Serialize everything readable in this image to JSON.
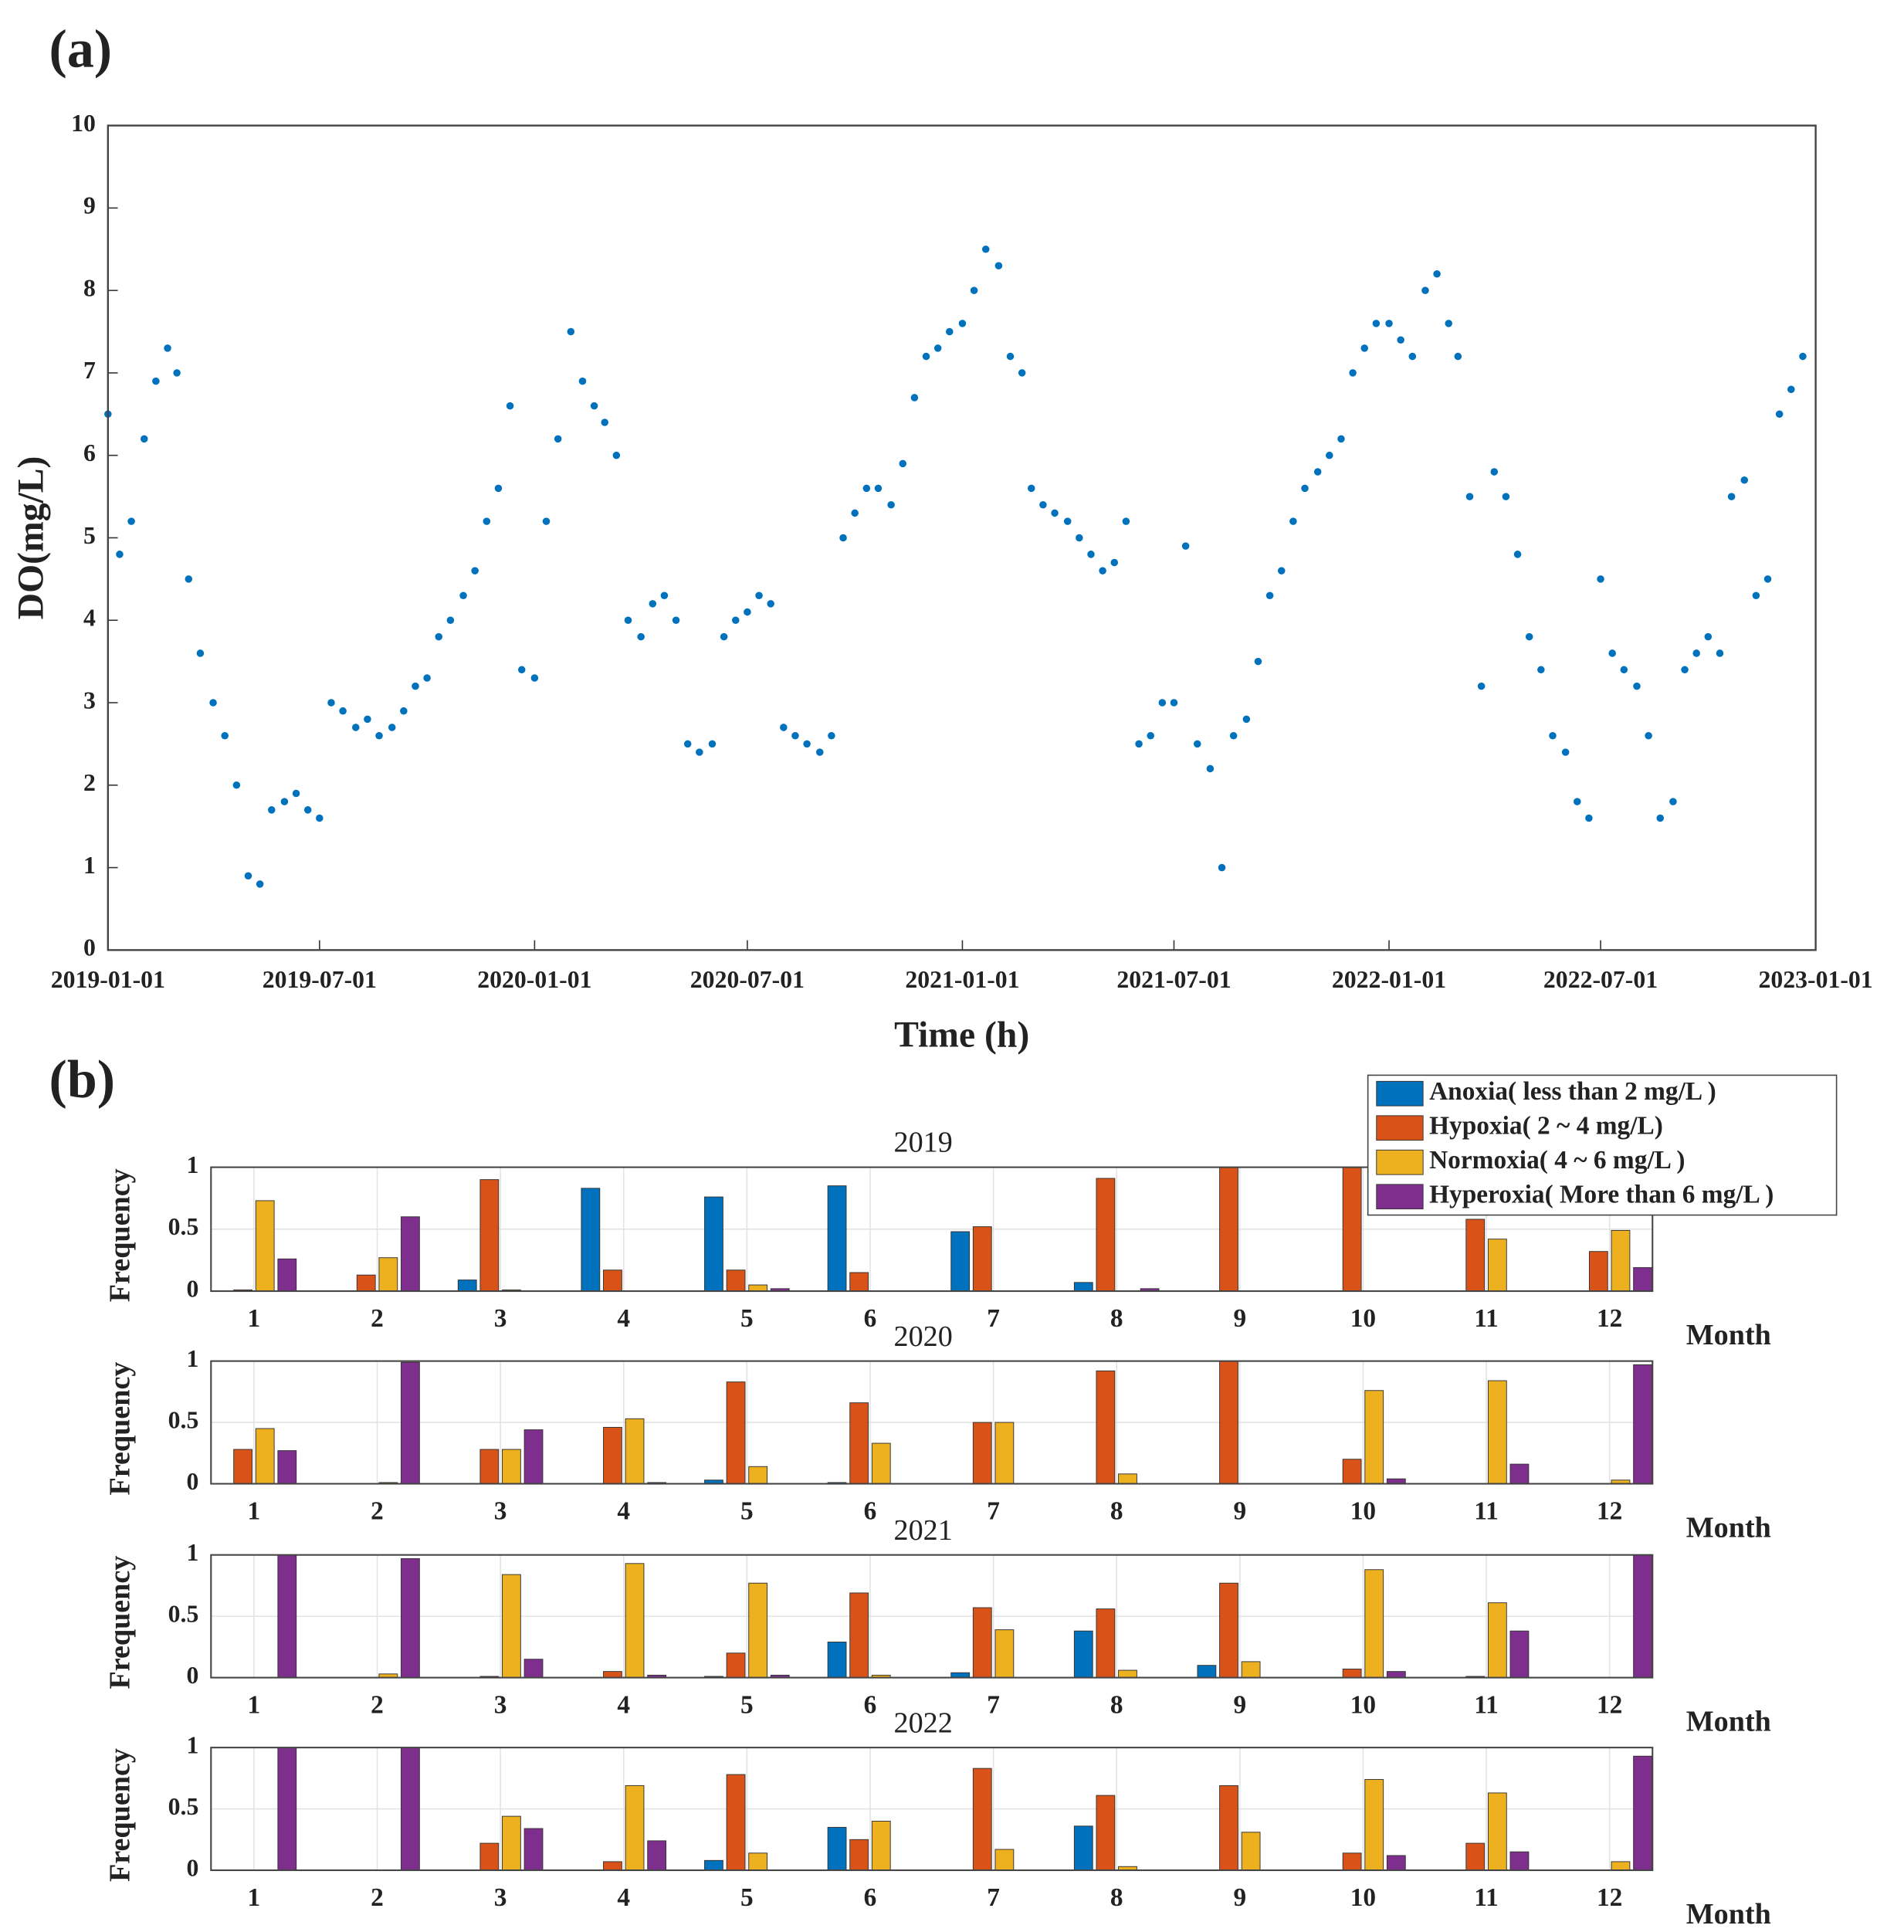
{
  "chart_data": [
    {
      "type": "scatter",
      "panel_label": "(a)",
      "xlabel": "Time (h)",
      "ylabel": "DO(mg/L)",
      "color": "#0072BD",
      "grid": false,
      "xlim": [
        "2019-01-01",
        "2023-01-01"
      ],
      "xticks": [
        "2019-01-01",
        "2019-07-01",
        "2020-01-01",
        "2020-07-01",
        "2021-01-01",
        "2021-07-01",
        "2022-01-01",
        "2022-07-01",
        "2023-01-01"
      ],
      "ylim": [
        0,
        10
      ],
      "yticks": [
        0,
        1,
        2,
        3,
        4,
        5,
        6,
        7,
        8,
        9,
        10
      ],
      "x": [
        "2019-01-01",
        "2019-01-11",
        "2019-01-21",
        "2019-02-01",
        "2019-02-11",
        "2019-02-21",
        "2019-03-01",
        "2019-03-11",
        "2019-03-21",
        "2019-04-01",
        "2019-04-11",
        "2019-04-21",
        "2019-05-01",
        "2019-05-11",
        "2019-05-21",
        "2019-06-01",
        "2019-06-11",
        "2019-06-21",
        "2019-07-01",
        "2019-07-11",
        "2019-07-21",
        "2019-08-01",
        "2019-08-11",
        "2019-08-21",
        "2019-09-01",
        "2019-09-11",
        "2019-09-21",
        "2019-10-01",
        "2019-10-11",
        "2019-10-21",
        "2019-11-01",
        "2019-11-11",
        "2019-11-21",
        "2019-12-01",
        "2019-12-11",
        "2019-12-21",
        "2020-01-01",
        "2020-01-11",
        "2020-01-21",
        "2020-02-01",
        "2020-02-11",
        "2020-02-21",
        "2020-03-01",
        "2020-03-11",
        "2020-03-21",
        "2020-04-01",
        "2020-04-11",
        "2020-04-21",
        "2020-05-01",
        "2020-05-11",
        "2020-05-21",
        "2020-06-01",
        "2020-06-11",
        "2020-06-21",
        "2020-07-01",
        "2020-07-11",
        "2020-07-21",
        "2020-08-01",
        "2020-08-11",
        "2020-08-21",
        "2020-09-01",
        "2020-09-11",
        "2020-09-21",
        "2020-10-01",
        "2020-10-11",
        "2020-10-21",
        "2020-11-01",
        "2020-11-11",
        "2020-11-21",
        "2020-12-01",
        "2020-12-11",
        "2020-12-21",
        "2021-01-01",
        "2021-01-11",
        "2021-01-21",
        "2021-02-01",
        "2021-02-11",
        "2021-02-21",
        "2021-03-01",
        "2021-03-11",
        "2021-03-21",
        "2021-04-01",
        "2021-04-11",
        "2021-04-21",
        "2021-05-01",
        "2021-05-11",
        "2021-05-21",
        "2021-06-01",
        "2021-06-11",
        "2021-06-21",
        "2021-07-01",
        "2021-07-11",
        "2021-07-21",
        "2021-08-01",
        "2021-08-11",
        "2021-08-21",
        "2021-09-01",
        "2021-09-11",
        "2021-09-21",
        "2021-10-01",
        "2021-10-11",
        "2021-10-21",
        "2021-11-01",
        "2021-11-11",
        "2021-11-21",
        "2021-12-01",
        "2021-12-11",
        "2021-12-21",
        "2022-01-01",
        "2022-01-11",
        "2022-01-21",
        "2022-02-01",
        "2022-02-11",
        "2022-02-21",
        "2022-03-01",
        "2022-03-11",
        "2022-03-21",
        "2022-04-01",
        "2022-04-11",
        "2022-04-21",
        "2022-05-01",
        "2022-05-11",
        "2022-05-21",
        "2022-06-01",
        "2022-06-11",
        "2022-06-21",
        "2022-07-01",
        "2022-07-11",
        "2022-07-21",
        "2022-08-01",
        "2022-08-11",
        "2022-08-21",
        "2022-09-01",
        "2022-09-11",
        "2022-09-21",
        "2022-10-01",
        "2022-10-11",
        "2022-10-21",
        "2022-11-01",
        "2022-11-11",
        "2022-11-21",
        "2022-12-01",
        "2022-12-11",
        "2022-12-21"
      ],
      "values": [
        6.5,
        4.8,
        5.2,
        6.2,
        6.9,
        7.3,
        7.0,
        4.5,
        3.6,
        3.0,
        2.6,
        2.0,
        0.9,
        0.8,
        1.7,
        1.8,
        1.9,
        1.7,
        1.6,
        3.0,
        2.9,
        2.7,
        2.8,
        2.6,
        2.7,
        2.9,
        3.2,
        3.3,
        3.8,
        4.0,
        4.3,
        4.6,
        5.2,
        5.6,
        6.6,
        3.4,
        3.3,
        5.2,
        6.2,
        7.5,
        6.9,
        6.6,
        6.4,
        6.0,
        4.0,
        3.8,
        4.2,
        4.3,
        4.0,
        2.5,
        2.4,
        2.5,
        3.8,
        4.0,
        4.1,
        4.3,
        4.2,
        2.7,
        2.6,
        2.5,
        2.4,
        2.6,
        5.0,
        5.3,
        5.6,
        5.6,
        5.4,
        5.9,
        6.7,
        7.2,
        7.3,
        7.5,
        7.6,
        8.0,
        8.5,
        8.3,
        7.2,
        7.0,
        5.6,
        5.4,
        5.3,
        5.2,
        5.0,
        4.8,
        4.6,
        4.7,
        5.2,
        2.5,
        2.6,
        3.0,
        3.0,
        4.9,
        2.5,
        2.2,
        1.0,
        2.6,
        2.8,
        3.5,
        4.3,
        4.6,
        5.2,
        5.6,
        5.8,
        6.0,
        6.2,
        7.0,
        7.3,
        7.6,
        7.6,
        7.4,
        7.2,
        8.0,
        8.2,
        7.6,
        7.2,
        5.5,
        3.2,
        5.8,
        5.5,
        4.8,
        3.8,
        3.4,
        2.6,
        2.4,
        1.8,
        1.6,
        4.5,
        3.6,
        3.4,
        3.2,
        2.6,
        1.6,
        1.8,
        3.4,
        3.6,
        3.8,
        3.6,
        5.5,
        5.7,
        4.3,
        4.5,
        6.5,
        6.8,
        7.2
      ]
    },
    {
      "type": "bar",
      "panel_label": "(b)",
      "title": "2019",
      "xlabel": "Month",
      "ylabel": "Frequency",
      "grid": true,
      "legend": "upper right",
      "categories": [
        "1",
        "2",
        "3",
        "4",
        "5",
        "6",
        "7",
        "8",
        "9",
        "10",
        "11",
        "12"
      ],
      "ylim": [
        0,
        1
      ],
      "yticks": [
        0,
        0.5,
        1
      ],
      "series": [
        {
          "name": "Anoxia( less than 2 mg/L )",
          "color": "#0072BD",
          "values": [
            0,
            0,
            0.09,
            0.83,
            0.76,
            0.85,
            0.48,
            0.07,
            0,
            0,
            0,
            0
          ]
        },
        {
          "name": "Hypoxia( 2 ~ 4 mg/L)",
          "color": "#D95319",
          "values": [
            0.01,
            0.13,
            0.9,
            0.17,
            0.17,
            0.15,
            0.52,
            0.91,
            1,
            1,
            0.58,
            0.32
          ]
        },
        {
          "name": "Normoxia( 4 ~ 6 mg/L )",
          "color": "#EDB120",
          "values": [
            0.73,
            0.27,
            0.01,
            0,
            0.05,
            0,
            0,
            0,
            0,
            0,
            0.42,
            0.49
          ]
        },
        {
          "name": "Hyperoxia( More than 6 mg/L )",
          "color": "#7E2F8E",
          "values": [
            0.26,
            0.6,
            0,
            0,
            0.02,
            0,
            0,
            0.02,
            0,
            0,
            0,
            0.19
          ]
        }
      ]
    },
    {
      "type": "bar",
      "title": "2020",
      "xlabel": "Month",
      "ylabel": "Frequency",
      "grid": true,
      "categories": [
        "1",
        "2",
        "3",
        "4",
        "5",
        "6",
        "7",
        "8",
        "9",
        "10",
        "11",
        "12"
      ],
      "ylim": [
        0,
        1
      ],
      "yticks": [
        0,
        0.5,
        1
      ],
      "series": [
        {
          "color": "#0072BD",
          "values": [
            0,
            0,
            0,
            0,
            0.03,
            0.01,
            0,
            0,
            0,
            0,
            0,
            0
          ]
        },
        {
          "color": "#D95319",
          "values": [
            0.28,
            0,
            0.28,
            0.46,
            0.83,
            0.66,
            0.5,
            0.92,
            1,
            0.2,
            0,
            0
          ]
        },
        {
          "color": "#EDB120",
          "values": [
            0.45,
            0.01,
            0.28,
            0.53,
            0.14,
            0.33,
            0.5,
            0.08,
            0,
            0.76,
            0.84,
            0.03
          ]
        },
        {
          "color": "#7E2F8E",
          "values": [
            0.27,
            0.99,
            0.44,
            0.01,
            0,
            0,
            0,
            0,
            0,
            0.04,
            0.16,
            0.97
          ]
        }
      ]
    },
    {
      "type": "bar",
      "title": "2021",
      "xlabel": "Month",
      "ylabel": "Frequency",
      "grid": true,
      "categories": [
        "1",
        "2",
        "3",
        "4",
        "5",
        "6",
        "7",
        "8",
        "9",
        "10",
        "11",
        "12"
      ],
      "ylim": [
        0,
        1
      ],
      "yticks": [
        0,
        0.5,
        1
      ],
      "series": [
        {
          "color": "#0072BD",
          "values": [
            0,
            0,
            0,
            0,
            0.01,
            0.29,
            0.04,
            0.38,
            0.1,
            0,
            0,
            0
          ]
        },
        {
          "color": "#D95319",
          "values": [
            0,
            0,
            0.01,
            0.05,
            0.2,
            0.69,
            0.57,
            0.56,
            0.77,
            0.07,
            0.01,
            0
          ]
        },
        {
          "color": "#EDB120",
          "values": [
            0,
            0.03,
            0.84,
            0.93,
            0.77,
            0.02,
            0.39,
            0.06,
            0.13,
            0.88,
            0.61,
            0
          ]
        },
        {
          "color": "#7E2F8E",
          "values": [
            1,
            0.97,
            0.15,
            0.02,
            0.02,
            0,
            0,
            0,
            0,
            0.05,
            0.38,
            1
          ]
        }
      ]
    },
    {
      "type": "bar",
      "title": "2022",
      "xlabel": "Month",
      "ylabel": "Frequency",
      "grid": true,
      "categories": [
        "1",
        "2",
        "3",
        "4",
        "5",
        "6",
        "7",
        "8",
        "9",
        "10",
        "11",
        "12"
      ],
      "ylim": [
        0,
        1
      ],
      "yticks": [
        0,
        0.5,
        1
      ],
      "series": [
        {
          "color": "#0072BD",
          "values": [
            0,
            0,
            0,
            0,
            0.08,
            0.35,
            0,
            0.36,
            0,
            0,
            0,
            0
          ]
        },
        {
          "color": "#D95319",
          "values": [
            0,
            0,
            0.22,
            0.07,
            0.78,
            0.25,
            0.83,
            0.61,
            0.69,
            0.14,
            0.22,
            0
          ]
        },
        {
          "color": "#EDB120",
          "values": [
            0,
            0,
            0.44,
            0.69,
            0.14,
            0.4,
            0.17,
            0.03,
            0.31,
            0.74,
            0.63,
            0.07
          ]
        },
        {
          "color": "#7E2F8E",
          "values": [
            1,
            1,
            0.34,
            0.24,
            0,
            0,
            0,
            0,
            0,
            0.12,
            0.15,
            0.93
          ]
        }
      ]
    }
  ]
}
